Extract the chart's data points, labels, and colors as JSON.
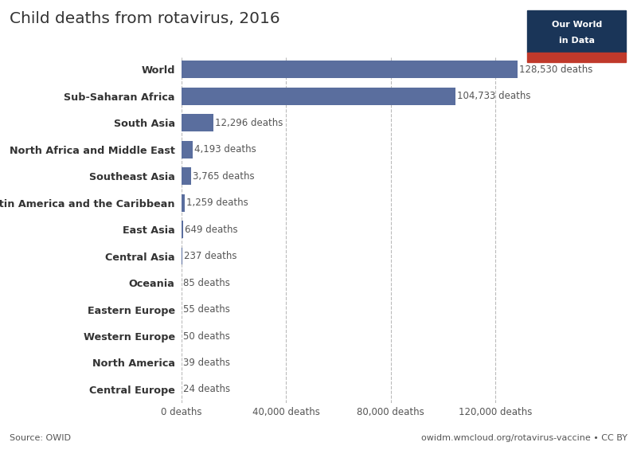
{
  "title": "Child deaths from rotavirus, 2016",
  "categories": [
    "Central Europe",
    "North America",
    "Western Europe",
    "Eastern Europe",
    "Oceania",
    "Central Asia",
    "East Asia",
    "Latin America and the Caribbean",
    "Southeast Asia",
    "North Africa and Middle East",
    "South Asia",
    "Sub-Saharan Africa",
    "World"
  ],
  "values": [
    24,
    39,
    50,
    55,
    85,
    237,
    649,
    1259,
    3765,
    4193,
    12296,
    104733,
    128530
  ],
  "bar_color": "#5a6e9e",
  "background_color": "#ffffff",
  "xlim": [
    0,
    145000
  ],
  "xticks": [
    0,
    40000,
    80000,
    120000
  ],
  "xtick_labels": [
    "0 deaths",
    "40,000 deaths",
    "80,000 deaths",
    "120,000 deaths"
  ],
  "source_text": "Source: OWID",
  "credit_text": "owidm.wmcloud.org/rotavirus-vaccine â¢ CC BY",
  "value_labels": [
    "24 deaths",
    "39 deaths",
    "50 deaths",
    "55 deaths",
    "85 deaths",
    "237 deaths",
    "649 deaths",
    "1,259 deaths",
    "3,765 deaths",
    "4,193 deaths",
    "12,296 deaths",
    "104,733 deaths",
    "128,530 deaths"
  ],
  "badge_bg": "#1a3558",
  "badge_red": "#c0392b",
  "badge_text1": "Our World",
  "badge_text2": "in Data"
}
